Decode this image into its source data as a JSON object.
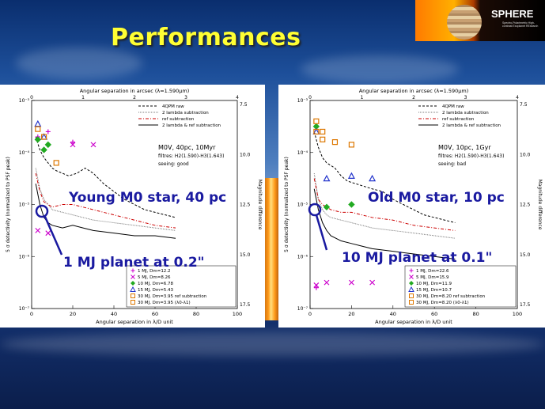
{
  "slide": {
    "title": "Performances",
    "logo": {
      "brand": "SPHERE",
      "subtitle": "Spectro-Polarimetric High-contrast Exoplanet REsearch"
    }
  },
  "chart_data": [
    {
      "type": "line",
      "top_axis_label": "Angular separation in arcsec (λ=1.590μm)",
      "top_ticks": [
        "0",
        "1",
        "2",
        "3",
        "4"
      ],
      "xlabel": "Angular separation in λ/D unit",
      "xlim": [
        0,
        100
      ],
      "x_ticks": [
        "0",
        "20",
        "40",
        "60",
        "80",
        "100"
      ],
      "ylabel": "5 σ detectivity (normalized to PSF peak)",
      "ylim_log10": [
        -7,
        -3
      ],
      "y_ticks": [
        "10⁻³",
        "10⁻⁴",
        "10⁻⁵",
        "10⁻⁶",
        "10⁻⁷"
      ],
      "right_label": "Magnitude difference",
      "right_ticks": [
        "7.5",
        "10.0",
        "12.5",
        "15.0",
        "17.5"
      ],
      "info": [
        "M0V, 40pc, 10Myr",
        "filtres: H2(1.590)-H3(1.643)",
        "seeing: good"
      ],
      "series": [
        {
          "name": "4QPM raw",
          "color": "#000000",
          "dash": "3,2",
          "x": [
            2,
            4,
            6,
            8,
            10,
            12,
            15,
            18,
            22,
            26,
            30,
            35,
            40,
            45,
            50,
            55,
            60,
            65,
            70
          ],
          "y": [
            -3.7,
            -3.95,
            -4.1,
            -4.2,
            -4.3,
            -4.35,
            -4.4,
            -4.45,
            -4.4,
            -4.3,
            -4.4,
            -4.6,
            -4.75,
            -4.9,
            -5.0,
            -5.1,
            -5.15,
            -5.2,
            -5.25
          ]
        },
        {
          "name": "2 lambda subtraction",
          "color": "#777777",
          "dash": "1,1",
          "x": [
            2,
            4,
            6,
            8,
            10,
            15,
            20,
            25,
            30,
            40,
            50,
            60,
            70
          ],
          "y": [
            -4.3,
            -4.7,
            -4.9,
            -5.0,
            -5.1,
            -5.15,
            -5.2,
            -5.25,
            -5.3,
            -5.35,
            -5.4,
            -5.45,
            -5.5
          ]
        },
        {
          "name": "ref subtraction",
          "color": "#cc0000",
          "dash": "4,2,1,2",
          "x": [
            2,
            4,
            6,
            8,
            10,
            15,
            20,
            25,
            30,
            40,
            50,
            60,
            70
          ],
          "y": [
            -4.4,
            -4.75,
            -4.95,
            -5.0,
            -5.05,
            -5.0,
            -5.0,
            -5.05,
            -5.1,
            -5.2,
            -5.3,
            -5.4,
            -5.45
          ]
        },
        {
          "name": "2 lambda & ref subtraction",
          "color": "#000000",
          "dash": "",
          "x": [
            2,
            4,
            6,
            8,
            10,
            15,
            20,
            25,
            30,
            40,
            50,
            60,
            70
          ],
          "y": [
            -4.6,
            -5.0,
            -5.25,
            -5.35,
            -5.4,
            -5.45,
            -5.4,
            -5.45,
            -5.5,
            -5.55,
            -5.6,
            -5.6,
            -5.65
          ]
        }
      ],
      "markers": [
        {
          "name": "1 MJ, Dm=12.2",
          "symbol": "+",
          "color": "#cc00cc",
          "x": [
            3,
            8,
            20
          ],
          "y": [
            -3.7,
            -3.6,
            -3.8
          ]
        },
        {
          "name": "5 MJ, Dm=8.26",
          "symbol": "x",
          "color": "#cc00cc",
          "x": [
            3,
            8,
            20,
            30
          ],
          "y": [
            -5.5,
            -5.55,
            -3.85,
            -3.85
          ]
        },
        {
          "name": "10 MJ, Dm=6.78",
          "symbol": "o",
          "color": "#22aa22",
          "x": [
            3,
            6,
            8
          ],
          "y": [
            -3.75,
            -3.95,
            -3.85
          ]
        },
        {
          "name": "15 MJ, Dm=5.43",
          "symbol": "tri",
          "color": "#2233cc",
          "x": [
            3,
            6
          ],
          "y": [
            -3.45,
            -3.7
          ]
        },
        {
          "name": "30 MJ, Dm=3.95 ref subtraction",
          "symbol": "sq",
          "color": "#dd7700",
          "x": [
            3,
            6
          ],
          "y": [
            -3.55,
            -3.7
          ]
        },
        {
          "name": "30 MJ, Dm=3.95 (λ0-λ1)",
          "symbol": "sq",
          "color": "#dd7700",
          "x": [
            12
          ],
          "y": [
            -4.2
          ]
        }
      ]
    },
    {
      "type": "line",
      "top_axis_label": "Angular separation in arcsec (λ=1.590μm)",
      "top_ticks": [
        "0",
        "1",
        "2",
        "3",
        "4"
      ],
      "xlabel": "Angular separation in λ/D unit",
      "xlim": [
        0,
        100
      ],
      "x_ticks": [
        "0",
        "20",
        "40",
        "60",
        "80",
        "100"
      ],
      "ylabel": "5 σ detectivity (normalized to PSF peak)",
      "ylim_log10": [
        -7,
        -3
      ],
      "y_ticks": [
        "10⁻³",
        "10⁻⁴",
        "10⁻⁵",
        "10⁻⁶",
        "10⁻⁷"
      ],
      "right_label": "Magnitude difference",
      "right_ticks": [
        "7.5",
        "10.0",
        "12.5",
        "15.0",
        "17.5"
      ],
      "info": [
        "M0V, 10pc, 1Gyr",
        "filtres: H2(1.590)-H3(1.643)",
        "seeing: bad"
      ],
      "series": [
        {
          "name": "4QPM raw",
          "color": "#000000",
          "dash": "3,2",
          "x": [
            2,
            4,
            6,
            8,
            10,
            12,
            15,
            18,
            22,
            26,
            30,
            35,
            40,
            45,
            50,
            55,
            60,
            65,
            70
          ],
          "y": [
            -3.6,
            -3.9,
            -4.1,
            -4.2,
            -4.25,
            -4.3,
            -4.45,
            -4.55,
            -4.6,
            -4.65,
            -4.7,
            -4.75,
            -4.9,
            -5.0,
            -5.1,
            -5.2,
            -5.25,
            -5.3,
            -5.35
          ]
        },
        {
          "name": "2 lambda subtraction",
          "color": "#777777",
          "dash": "1,1",
          "x": [
            2,
            4,
            6,
            8,
            10,
            15,
            20,
            25,
            30,
            40,
            50,
            60,
            70
          ],
          "y": [
            -4.4,
            -4.9,
            -5.1,
            -5.2,
            -5.25,
            -5.3,
            -5.35,
            -5.4,
            -5.45,
            -5.5,
            -5.55,
            -5.6,
            -5.65
          ]
        },
        {
          "name": "ref subtraction",
          "color": "#cc0000",
          "dash": "4,2,1,2",
          "x": [
            2,
            4,
            6,
            8,
            10,
            15,
            20,
            25,
            30,
            40,
            50,
            60,
            70
          ],
          "y": [
            -4.5,
            -4.9,
            -5.0,
            -5.05,
            -5.1,
            -5.15,
            -5.15,
            -5.2,
            -5.25,
            -5.3,
            -5.4,
            -5.45,
            -5.5
          ]
        },
        {
          "name": "2 lambda & ref subtraction",
          "color": "#000000",
          "dash": "",
          "x": [
            2,
            4,
            6,
            8,
            10,
            15,
            20,
            25,
            30,
            40,
            50,
            60,
            70
          ],
          "y": [
            -4.7,
            -5.1,
            -5.35,
            -5.5,
            -5.6,
            -5.7,
            -5.75,
            -5.8,
            -5.85,
            -5.9,
            -5.95,
            -6.0,
            -6.05
          ]
        }
      ],
      "markers": [
        {
          "name": "1 MJ, Dm=22.6",
          "symbol": "+",
          "color": "#cc00cc",
          "x": [
            3
          ],
          "y": [
            -6.6
          ]
        },
        {
          "name": "5 MJ, Dm=15.9",
          "symbol": "x",
          "color": "#cc00cc",
          "x": [
            3,
            8,
            20,
            30
          ],
          "y": [
            -6.55,
            -6.5,
            -6.5,
            -6.5
          ]
        },
        {
          "name": "10 MJ, Dm=11.9",
          "symbol": "o",
          "color": "#22aa22",
          "x": [
            3,
            8,
            20
          ],
          "y": [
            -3.5,
            -5.05,
            -5.0
          ]
        },
        {
          "name": "15 MJ, Dm=10.7",
          "symbol": "tri",
          "color": "#2233cc",
          "x": [
            3,
            8,
            20,
            30
          ],
          "y": [
            -3.6,
            -4.5,
            -4.45,
            -4.5
          ]
        },
        {
          "name": "30 MJ, Dm=8.20 ref subtraction",
          "symbol": "sq",
          "color": "#dd7700",
          "x": [
            3,
            6,
            12,
            20
          ],
          "y": [
            -3.4,
            -3.6,
            -3.8,
            -3.85
          ]
        },
        {
          "name": "30 MJ, Dm=8.20 (λ0-λ1)",
          "symbol": "sq",
          "color": "#dd7700",
          "x": [
            3,
            6
          ],
          "y": [
            -3.6,
            -3.75
          ]
        }
      ]
    }
  ],
  "annotations": {
    "left": {
      "star": "Young M0 star, 40 pc",
      "planet": "1 MJ planet at 0.2\""
    },
    "right": {
      "star": "Old M0 star, 10 pc",
      "planet": "10 MJ planet at 0.1\""
    }
  }
}
